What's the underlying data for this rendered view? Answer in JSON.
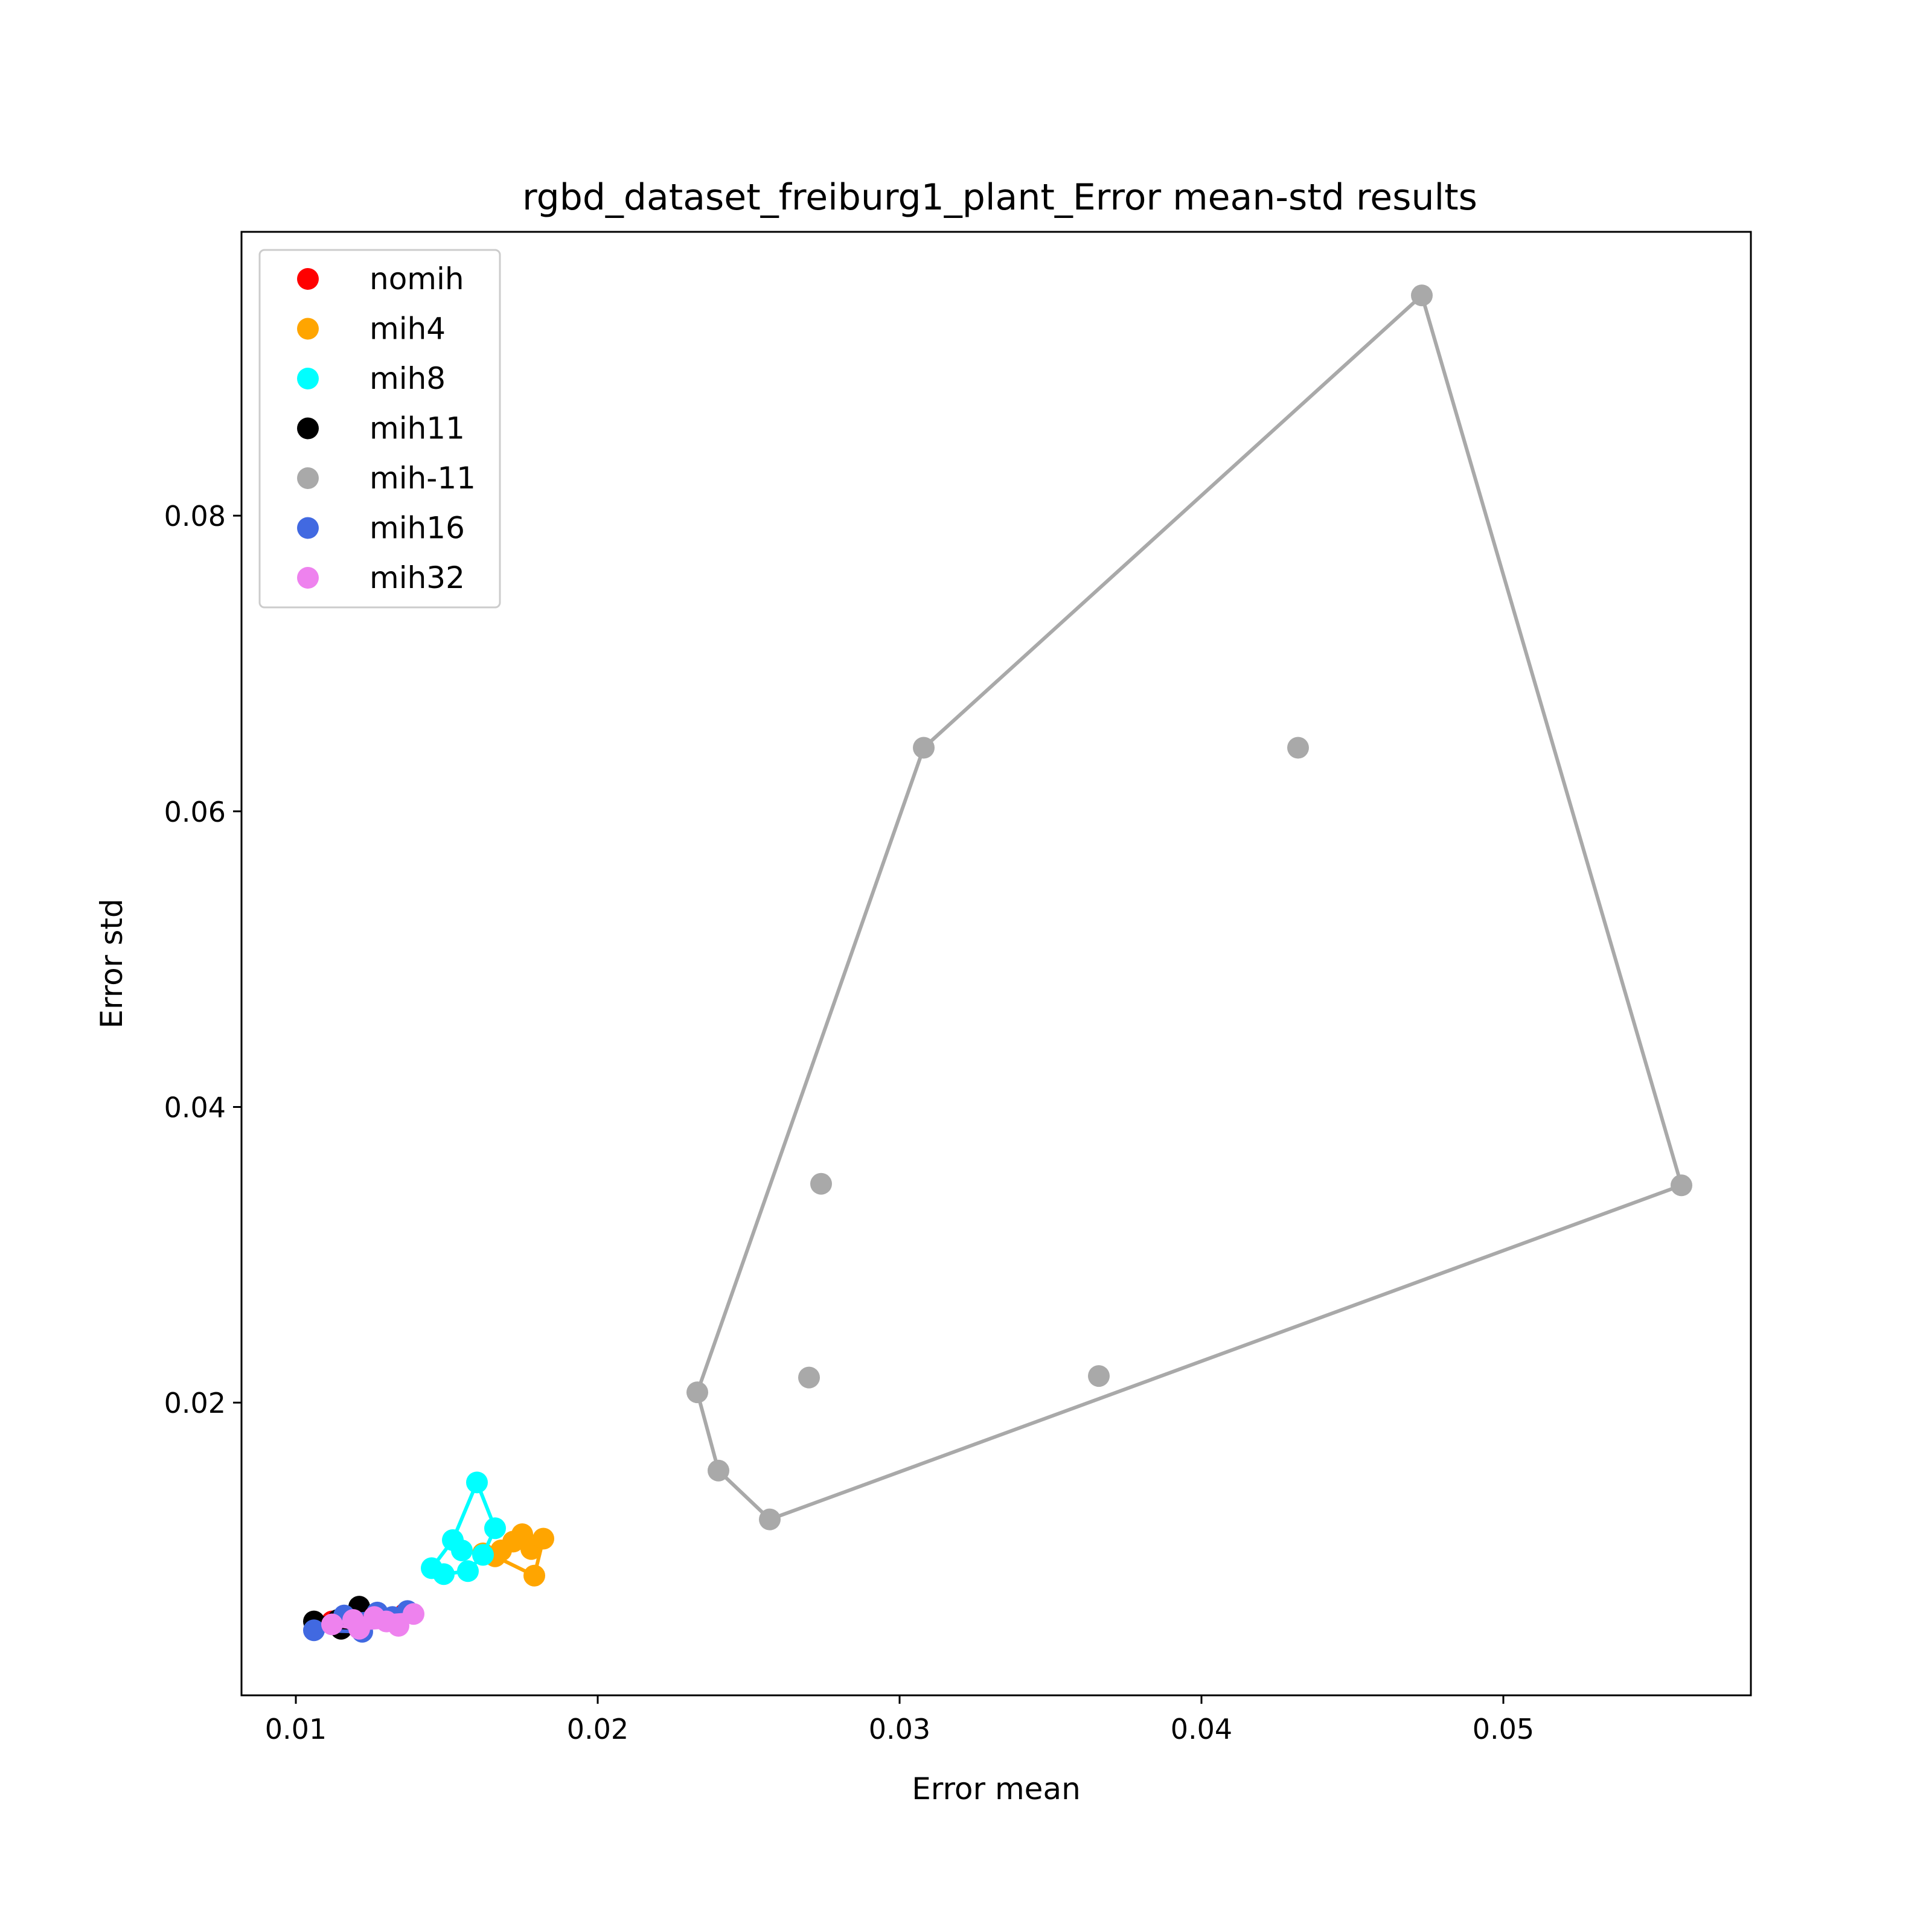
{
  "chart_data": {
    "type": "scatter",
    "title": "rgbd_dataset_freiburg1_plant_Error mean-std results",
    "xlabel": "Error mean",
    "ylabel": "Error std",
    "xlim": [
      0.0082,
      0.0582
    ],
    "ylim": [
      0.0002,
      0.0992
    ],
    "xticks": [
      0.01,
      0.02,
      0.03,
      0.04,
      0.05
    ],
    "xtick_labels": [
      "0.01",
      "0.02",
      "0.03",
      "0.04",
      "0.05"
    ],
    "yticks": [
      0.02,
      0.04,
      0.06,
      0.08
    ],
    "ytick_labels": [
      "0.02",
      "0.04",
      "0.06",
      "0.08"
    ],
    "grid": false,
    "legend_position": "top-left",
    "series": [
      {
        "name": "nomih",
        "color": "#ff0000",
        "points": [
          [
            0.0112,
            0.0052
          ],
          [
            0.0122,
            0.0056
          ],
          [
            0.013,
            0.0054
          ],
          [
            0.0136,
            0.0057
          ]
        ],
        "hull": [
          [
            0.0112,
            0.0052
          ],
          [
            0.0122,
            0.0056
          ],
          [
            0.0136,
            0.0057
          ],
          [
            0.013,
            0.0054
          ],
          [
            0.0112,
            0.0052
          ]
        ]
      },
      {
        "name": "mih4",
        "color": "#ffa500",
        "points": [
          [
            0.0162,
            0.0098
          ],
          [
            0.0168,
            0.01
          ],
          [
            0.0172,
            0.0106
          ],
          [
            0.0175,
            0.0111
          ],
          [
            0.0178,
            0.0101
          ],
          [
            0.0182,
            0.0108
          ],
          [
            0.0179,
            0.0083
          ],
          [
            0.0166,
            0.0096
          ]
        ],
        "hull": [
          [
            0.0162,
            0.0098
          ],
          [
            0.0175,
            0.0111
          ],
          [
            0.0182,
            0.0108
          ],
          [
            0.0179,
            0.0083
          ],
          [
            0.0166,
            0.0096
          ],
          [
            0.0162,
            0.0098
          ]
        ]
      },
      {
        "name": "mih8",
        "color": "#00ffff",
        "points": [
          [
            0.0145,
            0.0088
          ],
          [
            0.0149,
            0.0084
          ],
          [
            0.0152,
            0.0107
          ],
          [
            0.0155,
            0.01
          ],
          [
            0.0157,
            0.0086
          ],
          [
            0.016,
            0.0146
          ],
          [
            0.0162,
            0.0097
          ],
          [
            0.0166,
            0.0115
          ]
        ],
        "hull": [
          [
            0.0145,
            0.0088
          ],
          [
            0.0152,
            0.0107
          ],
          [
            0.016,
            0.0146
          ],
          [
            0.0166,
            0.0115
          ],
          [
            0.0162,
            0.0097
          ],
          [
            0.0157,
            0.0086
          ],
          [
            0.0149,
            0.0084
          ],
          [
            0.0145,
            0.0088
          ]
        ]
      },
      {
        "name": "mih11",
        "color": "#000000",
        "points": [
          [
            0.0106,
            0.0052
          ],
          [
            0.0114,
            0.0053
          ],
          [
            0.0115,
            0.0047
          ],
          [
            0.0121,
            0.0062
          ],
          [
            0.0125,
            0.0055
          ]
        ],
        "hull": [
          [
            0.0106,
            0.0052
          ],
          [
            0.0121,
            0.0062
          ],
          [
            0.0125,
            0.0055
          ],
          [
            0.0115,
            0.0047
          ],
          [
            0.0106,
            0.0052
          ]
        ]
      },
      {
        "name": "mih-11",
        "color": "#a9a9a9",
        "points": [
          [
            0.0233,
            0.0207
          ],
          [
            0.024,
            0.0154
          ],
          [
            0.0257,
            0.0121
          ],
          [
            0.027,
            0.0217
          ],
          [
            0.0274,
            0.0348
          ],
          [
            0.0308,
            0.0643
          ],
          [
            0.0366,
            0.0218
          ],
          [
            0.0432,
            0.0643
          ],
          [
            0.0473,
            0.0949
          ],
          [
            0.0559,
            0.0347
          ]
        ],
        "hull": [
          [
            0.0233,
            0.0207
          ],
          [
            0.0308,
            0.0643
          ],
          [
            0.0473,
            0.0949
          ],
          [
            0.0559,
            0.0347
          ],
          [
            0.0257,
            0.0121
          ],
          [
            0.024,
            0.0154
          ],
          [
            0.0233,
            0.0207
          ]
        ]
      },
      {
        "name": "mih16",
        "color": "#4169e1",
        "points": [
          [
            0.0106,
            0.0046
          ],
          [
            0.0116,
            0.0056
          ],
          [
            0.0122,
            0.0045
          ],
          [
            0.0127,
            0.0058
          ],
          [
            0.0132,
            0.0055
          ],
          [
            0.0137,
            0.0059
          ]
        ],
        "hull": [
          [
            0.0106,
            0.0046
          ],
          [
            0.0116,
            0.0056
          ],
          [
            0.0127,
            0.0058
          ],
          [
            0.0137,
            0.0059
          ],
          [
            0.0132,
            0.0055
          ],
          [
            0.0122,
            0.0045
          ],
          [
            0.0106,
            0.0046
          ]
        ]
      },
      {
        "name": "mih32",
        "color": "#ee82ee",
        "points": [
          [
            0.0112,
            0.005
          ],
          [
            0.0119,
            0.0053
          ],
          [
            0.0121,
            0.0047
          ],
          [
            0.0126,
            0.0055
          ],
          [
            0.013,
            0.0052
          ],
          [
            0.0134,
            0.0049
          ],
          [
            0.0139,
            0.0057
          ]
        ],
        "hull": [
          [
            0.0112,
            0.005
          ],
          [
            0.0119,
            0.0053
          ],
          [
            0.0126,
            0.0055
          ],
          [
            0.0139,
            0.0057
          ],
          [
            0.0134,
            0.0049
          ],
          [
            0.0121,
            0.0047
          ],
          [
            0.0112,
            0.005
          ]
        ]
      }
    ]
  }
}
